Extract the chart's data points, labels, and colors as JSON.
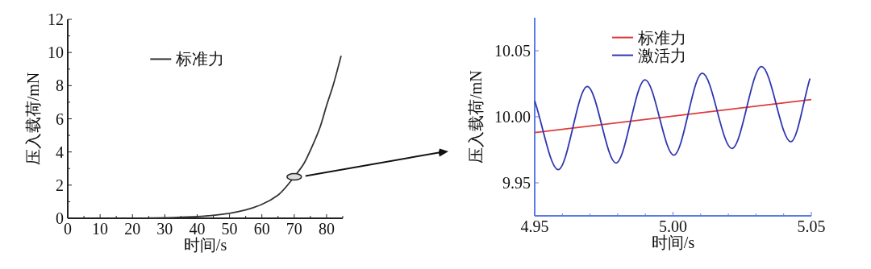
{
  "chart_data": [
    {
      "type": "line",
      "xlabel": "时间/s",
      "ylabel": "压入载荷/mN",
      "xlim": [
        0,
        85
      ],
      "ylim": [
        0,
        12
      ],
      "xticks": [
        0,
        {
          "value": 5,
          "label": null
        },
        10,
        {
          "value": 15,
          "label": null
        },
        20,
        {
          "value": 25,
          "label": null
        },
        30,
        {
          "value": 35,
          "label": null
        },
        40,
        {
          "value": 45,
          "label": null
        },
        50,
        {
          "value": 55,
          "label": null
        },
        60,
        {
          "value": 65,
          "label": null
        },
        70,
        {
          "value": 75,
          "label": null
        },
        80,
        {
          "value": 85,
          "label": null
        }
      ],
      "yticks": [
        0,
        {
          "value": 1,
          "label": null
        },
        2,
        {
          "value": 3,
          "label": null
        },
        4,
        {
          "value": 5,
          "label": null
        },
        6,
        {
          "value": 7,
          "label": null
        },
        8,
        {
          "value": 9,
          "label": null
        },
        10,
        {
          "value": 11,
          "label": null
        },
        12
      ],
      "legend": "top left",
      "series": [
        {
          "name": "标准力",
          "color": "#333333",
          "x": [
            25,
            30,
            35,
            40,
            45,
            50,
            55,
            60,
            65,
            70,
            73,
            75,
            78,
            80,
            82,
            84.5
          ],
          "values": [
            0.02,
            0.03,
            0.06,
            0.1,
            0.18,
            0.3,
            0.5,
            0.84,
            1.4,
            2.5,
            3.3,
            4.1,
            5.5,
            6.8,
            8.0,
            9.8
          ]
        }
      ]
    },
    {
      "type": "line",
      "xlabel": "时间/s",
      "ylabel": "压入载荷/mN",
      "xlim": [
        4.95,
        5.05
      ],
      "ylim": [
        9.925,
        10.075
      ],
      "xticks": [
        {
          "value": 4.95,
          "label": "4.95"
        },
        {
          "value": 4.96,
          "label": null
        },
        {
          "value": 4.97,
          "label": null
        },
        {
          "value": 4.98,
          "label": null
        },
        {
          "value": 4.99,
          "label": null
        },
        {
          "value": 5.0,
          "label": "5.00"
        },
        {
          "value": 5.01,
          "label": null
        },
        {
          "value": 5.02,
          "label": null
        },
        {
          "value": 5.03,
          "label": null
        },
        {
          "value": 5.04,
          "label": null
        },
        {
          "value": 5.05,
          "label": "5.05"
        }
      ],
      "yticks": [
        {
          "value": 9.95,
          "label": "9.95"
        },
        {
          "value": 10.0,
          "label": "10.00"
        },
        {
          "value": 10.05,
          "label": "10.05"
        }
      ],
      "legend": "top",
      "series": [
        {
          "name": "标准力",
          "color": "#e03a3a",
          "x": [
            4.95,
            5.05
          ],
          "values": [
            9.988,
            10.013
          ]
        },
        {
          "name": "激活力",
          "color": "#3036b0",
          "x": [
            4.95,
            4.9585,
            4.969,
            4.9794,
            4.9899,
            5.0003,
            5.0106,
            5.0213,
            5.032,
            5.0426,
            5.0495
          ],
          "values": [
            10.012,
            9.96,
            10.023,
            9.965,
            10.028,
            9.971,
            10.033,
            9.976,
            10.038,
            9.981,
            10.029
          ]
        }
      ]
    }
  ]
}
